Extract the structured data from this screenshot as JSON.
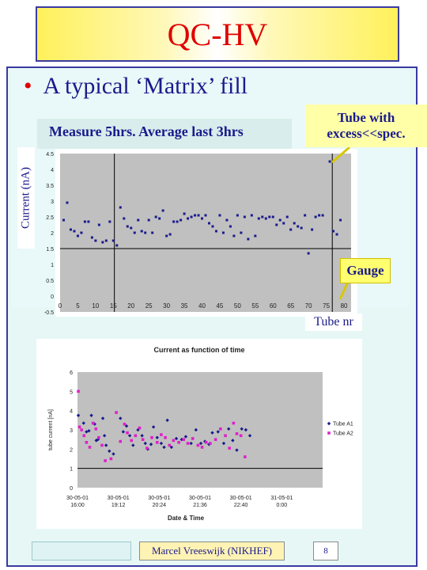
{
  "slide": {
    "title": "QC-HV",
    "bullet": "A typical ‘Matrix’ fill",
    "measure_note": "Measure 5hrs. Average last 3hrs",
    "ylabel": "Current (nA)",
    "callout_tube": "Tube with\nexcess<<spec.",
    "callout_gauge": "Gauge",
    "tube_nr_label": "Tube nr",
    "footer": "Marcel Vreeswijk (NIKHEF)",
    "page_number": "8",
    "colors": {
      "title": "#e00000",
      "text": "#1a1a8c",
      "frame": "#3a3aa0",
      "callout": "#ffffa8"
    }
  },
  "chart_data": [
    {
      "type": "scatter",
      "title": "",
      "xlabel": "",
      "ylabel": "",
      "xlim": [
        0,
        82
      ],
      "ylim": [
        -0.5,
        4.5
      ],
      "xticks": [
        "0",
        "5",
        "10",
        "15",
        "20",
        "25",
        "30",
        "35",
        "40",
        "45",
        "50",
        "55",
        "60",
        "65",
        "70",
        "75",
        "80"
      ],
      "yticks": [
        "-0.5",
        "0",
        "0.5",
        "1",
        "1.5",
        "2",
        "2.5",
        "3",
        "3.5",
        "4",
        "4.5"
      ],
      "reference_lines": {
        "horizontal_y": 1.5,
        "vertical_x": [
          15.3,
          76.7
        ]
      },
      "series": [
        {
          "color": "#1a1a8c",
          "points": [
            [
              1,
              2.4
            ],
            [
              2,
              2.95
            ],
            [
              3,
              2.1
            ],
            [
              4,
              2.05
            ],
            [
              5,
              1.9
            ],
            [
              6,
              2.0
            ],
            [
              7,
              2.35
            ],
            [
              8,
              2.35
            ],
            [
              9,
              1.85
            ],
            [
              10,
              1.75
            ],
            [
              11,
              2.25
            ],
            [
              12,
              1.7
            ],
            [
              13,
              1.75
            ],
            [
              14,
              2.35
            ],
            [
              15,
              1.75
            ],
            [
              16,
              1.6
            ],
            [
              17,
              2.8
            ],
            [
              18,
              2.45
            ],
            [
              19,
              2.2
            ],
            [
              20,
              2.15
            ],
            [
              21,
              2.0
            ],
            [
              22,
              2.4
            ],
            [
              23,
              2.05
            ],
            [
              24,
              2.0
            ],
            [
              25,
              2.4
            ],
            [
              26,
              2.0
            ],
            [
              27,
              2.5
            ],
            [
              28,
              2.45
            ],
            [
              29,
              2.7
            ],
            [
              30,
              1.9
            ],
            [
              31,
              1.95
            ],
            [
              32,
              2.35
            ],
            [
              33,
              2.35
            ],
            [
              34,
              2.4
            ],
            [
              35,
              2.6
            ],
            [
              36,
              2.45
            ],
            [
              37,
              2.5
            ],
            [
              38,
              2.55
            ],
            [
              39,
              2.55
            ],
            [
              40,
              2.45
            ],
            [
              41,
              2.55
            ],
            [
              42,
              2.3
            ],
            [
              43,
              2.2
            ],
            [
              44,
              2.05
            ],
            [
              45,
              2.55
            ],
            [
              46,
              2.0
            ],
            [
              47,
              2.4
            ],
            [
              48,
              2.2
            ],
            [
              49,
              1.9
            ],
            [
              50,
              2.55
            ],
            [
              51,
              2.0
            ],
            [
              52,
              2.5
            ],
            [
              53,
              1.8
            ],
            [
              54,
              2.55
            ],
            [
              55,
              1.9
            ],
            [
              56,
              2.45
            ],
            [
              57,
              2.5
            ],
            [
              58,
              2.45
            ],
            [
              59,
              2.5
            ],
            [
              60,
              2.5
            ],
            [
              61,
              2.25
            ],
            [
              62,
              2.4
            ],
            [
              63,
              2.3
            ],
            [
              64,
              2.5
            ],
            [
              65,
              2.1
            ],
            [
              66,
              2.3
            ],
            [
              67,
              2.2
            ],
            [
              68,
              2.15
            ],
            [
              69,
              2.55
            ],
            [
              70,
              1.35
            ],
            [
              71,
              2.1
            ],
            [
              72,
              2.5
            ],
            [
              73,
              2.55
            ],
            [
              74,
              2.55
            ],
            [
              76,
              4.25
            ],
            [
              77,
              2.05
            ],
            [
              78,
              1.95
            ],
            [
              79,
              2.4
            ]
          ]
        }
      ]
    },
    {
      "type": "scatter",
      "title": "Current as function of time",
      "xlabel": "Date & Time",
      "ylabel": "tube current [nA]",
      "xlim": [
        0,
        6
      ],
      "ylim": [
        0,
        6
      ],
      "x_tick_labels": [
        [
          "30-05-01",
          "16:00"
        ],
        [
          "30-05-01",
          "19:12"
        ],
        [
          "30-05-01",
          "20:24"
        ],
        [
          "30-05-01",
          "21:36"
        ],
        [
          "30-05-01",
          "22:40"
        ],
        [
          "31-05-01",
          "0:00"
        ]
      ],
      "yticks": [
        "0",
        "1",
        "2",
        "3",
        "4",
        "5",
        "6"
      ],
      "reference_line_y": 1,
      "legend_position": "right",
      "series": [
        {
          "name": "Tube A1",
          "color": "#1a1a8c",
          "marker": "diamond",
          "points": [
            [
              0.02,
              3.75
            ],
            [
              0.15,
              3.35
            ],
            [
              0.22,
              2.9
            ],
            [
              0.28,
              2.95
            ],
            [
              0.34,
              3.75
            ],
            [
              0.42,
              3.3
            ],
            [
              0.46,
              2.45
            ],
            [
              0.5,
              2.5
            ],
            [
              0.62,
              3.6
            ],
            [
              0.66,
              2.7
            ],
            [
              0.7,
              2.2
            ],
            [
              0.78,
              1.9
            ],
            [
              0.88,
              1.75
            ],
            [
              1.05,
              3.6
            ],
            [
              1.12,
              2.9
            ],
            [
              1.2,
              3.2
            ],
            [
              1.28,
              2.7
            ],
            [
              1.36,
              2.2
            ],
            [
              1.48,
              3.0
            ],
            [
              1.58,
              2.7
            ],
            [
              1.66,
              2.3
            ],
            [
              1.72,
              2.0
            ],
            [
              1.8,
              2.25
            ],
            [
              1.86,
              3.15
            ],
            [
              1.95,
              2.6
            ],
            [
              2.05,
              2.3
            ],
            [
              2.12,
              2.1
            ],
            [
              2.2,
              3.5
            ],
            [
              2.3,
              2.1
            ],
            [
              2.42,
              2.55
            ],
            [
              2.55,
              2.5
            ],
            [
              2.65,
              2.65
            ],
            [
              2.78,
              2.3
            ],
            [
              2.9,
              3.0
            ],
            [
              3.02,
              2.3
            ],
            [
              3.12,
              2.4
            ],
            [
              3.22,
              2.25
            ],
            [
              3.3,
              2.85
            ],
            [
              3.44,
              2.9
            ],
            [
              3.58,
              2.3
            ],
            [
              3.7,
              3.05
            ],
            [
              3.8,
              2.45
            ],
            [
              3.9,
              1.95
            ],
            [
              4.02,
              3.05
            ],
            [
              4.12,
              3.0
            ],
            [
              4.22,
              2.7
            ]
          ]
        },
        {
          "name": "Tube A2",
          "color": "#e020c8",
          "marker": "square",
          "points": [
            [
              0.02,
              5.0
            ],
            [
              0.05,
              3.15
            ],
            [
              0.1,
              3.0
            ],
            [
              0.16,
              2.7
            ],
            [
              0.22,
              2.35
            ],
            [
              0.3,
              2.1
            ],
            [
              0.38,
              3.35
            ],
            [
              0.45,
              3.05
            ],
            [
              0.52,
              2.6
            ],
            [
              0.6,
              2.2
            ],
            [
              0.68,
              1.4
            ],
            [
              0.82,
              1.5
            ],
            [
              0.95,
              3.9
            ],
            [
              1.05,
              2.4
            ],
            [
              1.15,
              3.3
            ],
            [
              1.22,
              2.85
            ],
            [
              1.32,
              2.45
            ],
            [
              1.42,
              2.7
            ],
            [
              1.52,
              3.1
            ],
            [
              1.6,
              2.5
            ],
            [
              1.7,
              2.05
            ],
            [
              1.82,
              2.6
            ],
            [
              1.95,
              2.35
            ],
            [
              2.05,
              2.75
            ],
            [
              2.15,
              2.6
            ],
            [
              2.25,
              2.2
            ],
            [
              2.35,
              2.45
            ],
            [
              2.48,
              2.35
            ],
            [
              2.6,
              2.5
            ],
            [
              2.7,
              2.3
            ],
            [
              2.82,
              2.55
            ],
            [
              2.95,
              2.2
            ],
            [
              3.05,
              2.1
            ],
            [
              3.15,
              2.35
            ],
            [
              3.25,
              2.3
            ],
            [
              3.38,
              2.5
            ],
            [
              3.5,
              3.05
            ],
            [
              3.62,
              2.7
            ],
            [
              3.72,
              2.05
            ],
            [
              3.82,
              3.35
            ],
            [
              3.9,
              2.8
            ],
            [
              4.0,
              2.7
            ],
            [
              4.1,
              1.6
            ]
          ]
        }
      ]
    }
  ]
}
